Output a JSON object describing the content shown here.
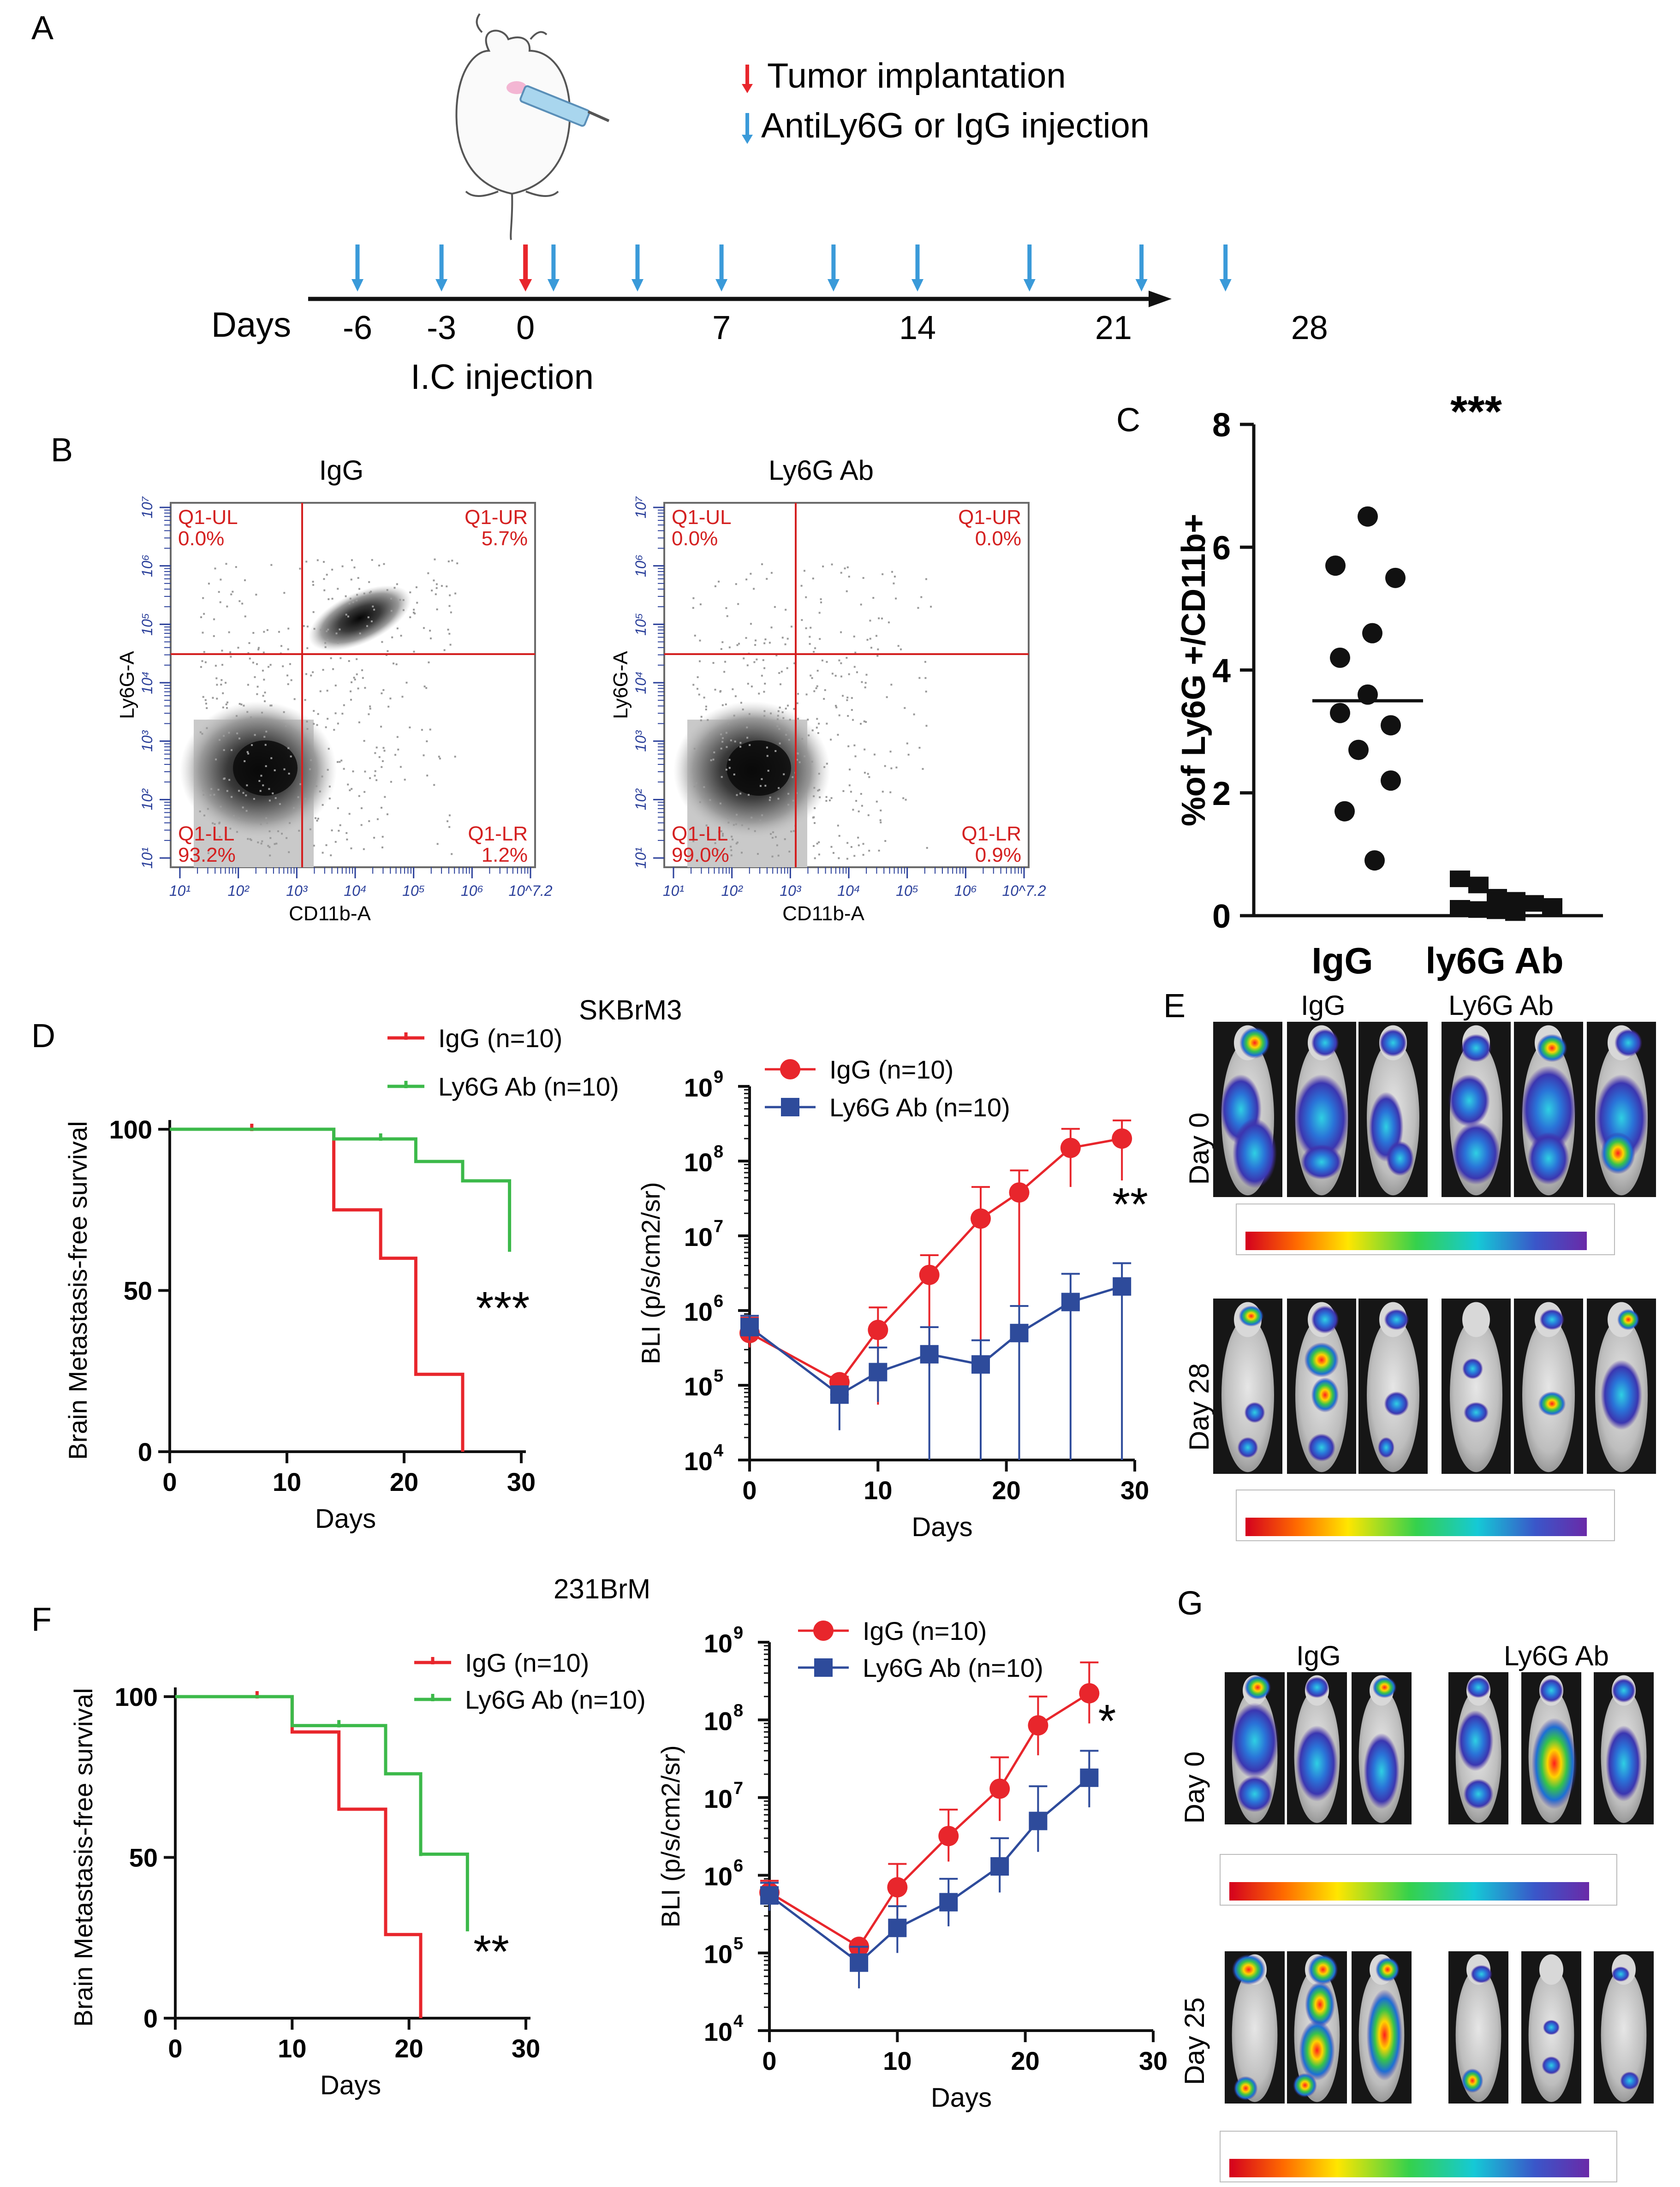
{
  "panels": {
    "A": "A",
    "B": "B",
    "C": "C",
    "D": "D",
    "E": "E",
    "F": "F",
    "G": "G"
  },
  "panel_a": {
    "legend_tumor": "Tumor implantation",
    "legend_injection": "AntiLy6G or IgG injection",
    "axis_label": "Days",
    "ticks": [
      "-6",
      "-3",
      "0",
      "7",
      "14",
      "21",
      "28"
    ],
    "tick_days": [
      -6,
      -3,
      0,
      7,
      14,
      21,
      28
    ],
    "injection_days": [
      -6,
      -3,
      1,
      4,
      7,
      11,
      14,
      18,
      22,
      25
    ],
    "tumor_day": 0,
    "sublabel": "I.C injection",
    "colors": {
      "tumor": "#e8262c",
      "injection": "#3a9ad9"
    }
  },
  "panel_b": {
    "plots": [
      {
        "title": "IgG",
        "ul_name": "Q1-UL",
        "ul_val": "0.0%",
        "ur_name": "Q1-UR",
        "ur_val": "5.7%",
        "ll_name": "Q1-LL",
        "ll_val": "93.2%",
        "lr_name": "Q1-LR",
        "lr_val": "1.2%",
        "xlabel": "CD11b-A",
        "ylabel": "Ly6G-A"
      },
      {
        "title": "Ly6G Ab",
        "ul_name": "Q1-UL",
        "ul_val": "0.0%",
        "ur_name": "Q1-UR",
        "ur_val": "0.0%",
        "ll_name": "Q1-LL",
        "ll_val": "99.0%",
        "lr_name": "Q1-LR",
        "lr_val": "0.9%",
        "xlabel": "CD11b-A",
        "ylabel": "Ly6G-A"
      }
    ],
    "x_ticks": [
      "10¹",
      "10²",
      "10³",
      "10⁴",
      "10⁵",
      "10⁶",
      "10^7.2"
    ],
    "y_ticks": [
      "10¹",
      "10²",
      "10³",
      "10⁴",
      "10⁵",
      "10⁶",
      "10⁷"
    ]
  },
  "chart_data": [
    {
      "id": "C",
      "type": "scatter",
      "ylabel": "%of Ly6G +/CD11b+",
      "ylim": [
        0,
        8
      ],
      "yticks": [
        "0",
        "2",
        "4",
        "6",
        "8"
      ],
      "categories": [
        "IgG",
        "ly6G Ab"
      ],
      "series": [
        {
          "name": "IgG",
          "values": [
            6.5,
            5.7,
            5.5,
            4.6,
            4.2,
            3.6,
            3.3,
            3.1,
            2.7,
            2.2,
            1.7,
            0.9
          ],
          "mean": 3.5,
          "color": "#111111"
        },
        {
          "name": "ly6G Ab",
          "values": [
            0.6,
            0.5,
            0.3,
            0.25,
            0.2,
            0.15,
            0.12,
            0.1,
            0.08,
            0.05
          ],
          "mean": 0.1,
          "color": "#111111"
        }
      ],
      "annotation": "***"
    },
    {
      "id": "D-left",
      "type": "line",
      "title": "SKBrM3",
      "xlabel": "Days",
      "ylabel": "Brain Metastasis-free survival",
      "xlim": [
        0,
        30
      ],
      "ylim": [
        0,
        100
      ],
      "xticks": [
        "0",
        "10",
        "20",
        "30"
      ],
      "yticks": [
        "0",
        "50",
        "100"
      ],
      "series": [
        {
          "name": "IgG (n=10)",
          "color": "#e8262c",
          "steps": [
            [
              0,
              100
            ],
            [
              14,
              100
            ],
            [
              14,
              75
            ],
            [
              18,
              75
            ],
            [
              18,
              60
            ],
            [
              21,
              60
            ],
            [
              21,
              24
            ],
            [
              25,
              24
            ],
            [
              25,
              0
            ]
          ],
          "censor": [
            [
              7,
              100
            ]
          ]
        },
        {
          "name": "Ly6G Ab (n=10)",
          "color": "#3cb94a",
          "steps": [
            [
              0,
              100
            ],
            [
              14,
              100
            ],
            [
              14,
              97
            ],
            [
              21,
              97
            ],
            [
              21,
              90
            ],
            [
              25,
              90
            ],
            [
              25,
              84
            ],
            [
              29,
              84
            ],
            [
              29,
              62
            ]
          ],
          "censor": [
            [
              18,
              97
            ]
          ]
        }
      ],
      "annotation": "***"
    },
    {
      "id": "D-right",
      "type": "line",
      "xlabel": "Days",
      "ylabel": "BLI (p/s/cm2/sr)",
      "xlim": [
        0,
        30
      ],
      "ylim_log10": [
        4,
        9
      ],
      "xticks": [
        "0",
        "10",
        "20",
        "30"
      ],
      "yticks": [
        "10",
        "10",
        "10",
        "10",
        "10",
        "10"
      ],
      "ytick_exp": [
        "4",
        "5",
        "6",
        "7",
        "8",
        "9"
      ],
      "x": [
        0,
        7,
        10,
        14,
        18,
        21,
        25,
        29
      ],
      "series": [
        {
          "name": "IgG (n=10)",
          "color": "#e8262c",
          "marker": "circle",
          "values": [
            500000,
            110000,
            550000,
            3000000,
            17000000,
            38000000,
            150000000,
            200000000
          ],
          "err_hi": [
            800000,
            130000,
            1100000,
            5500000,
            45000000,
            75000000,
            270000000,
            350000000
          ],
          "err_lo": [
            320000,
            90000,
            55000,
            180000,
            0,
            0,
            45000000,
            55000000
          ]
        },
        {
          "name": "Ly6G Ab (n=10)",
          "color": "#2e4b9b",
          "marker": "square",
          "values": [
            600000,
            75000,
            150000,
            260000,
            190000,
            500000,
            1300000,
            2100000
          ],
          "err_hi": [
            850000,
            75000,
            320000,
            600000,
            400000,
            1150000,
            3100000,
            4300000
          ],
          "err_lo": [
            400000,
            25000,
            60000,
            0,
            0,
            0,
            0,
            0
          ]
        }
      ],
      "annotation": "**"
    },
    {
      "id": "F-left",
      "type": "line",
      "title": "231BrM",
      "xlabel": "Days",
      "ylabel": "Brain Metastasis-free survival",
      "xlim": [
        0,
        30
      ],
      "ylim": [
        0,
        100
      ],
      "xticks": [
        "0",
        "10",
        "20",
        "30"
      ],
      "yticks": [
        "0",
        "50",
        "100"
      ],
      "series": [
        {
          "name": "IgG (n=10)",
          "color": "#e8262c",
          "steps": [
            [
              0,
              100
            ],
            [
              10,
              100
            ],
            [
              10,
              89
            ],
            [
              14,
              89
            ],
            [
              14,
              65
            ],
            [
              18,
              65
            ],
            [
              18,
              26
            ],
            [
              21,
              26
            ],
            [
              21,
              0
            ]
          ],
          "censor": [
            [
              7,
              100
            ]
          ]
        },
        {
          "name": "Ly6G Ab (n=10)",
          "color": "#3cb94a",
          "steps": [
            [
              0,
              100
            ],
            [
              10,
              100
            ],
            [
              10,
              91
            ],
            [
              14,
              91
            ],
            [
              18,
              91
            ],
            [
              18,
              76
            ],
            [
              21,
              76
            ],
            [
              21,
              51
            ],
            [
              25,
              51
            ],
            [
              25,
              27
            ]
          ],
          "censor": [
            [
              14,
              91
            ],
            [
              21,
              51
            ]
          ]
        }
      ],
      "annotation": "**"
    },
    {
      "id": "F-right",
      "type": "line",
      "xlabel": "Days",
      "ylabel": "BLI (p/s/cm2/sr)",
      "xlim": [
        0,
        30
      ],
      "ylim_log10": [
        4,
        9
      ],
      "xticks": [
        "0",
        "10",
        "20",
        "30"
      ],
      "yticks": [
        "10",
        "10",
        "10",
        "10",
        "10",
        "10"
      ],
      "ytick_exp": [
        "4",
        "5",
        "6",
        "7",
        "8",
        "9"
      ],
      "x": [
        0,
        7,
        10,
        14,
        18,
        21,
        25
      ],
      "series": [
        {
          "name": "IgG (n=10)",
          "color": "#e8262c",
          "marker": "circle",
          "values": [
            600000,
            120000,
            700000,
            3200000,
            13000000,
            85000000,
            220000000
          ],
          "err_hi": [
            850000,
            130000,
            1400000,
            7000000,
            33000000,
            200000000,
            550000000
          ],
          "err_lo": [
            400000,
            100000,
            300000,
            1500000,
            5000000,
            35000000,
            90000000
          ]
        },
        {
          "name": "Ly6G Ab (n=10)",
          "color": "#2e4b9b",
          "marker": "square",
          "values": [
            550000,
            75000,
            210000,
            450000,
            1300000,
            5000000,
            18000000
          ],
          "err_hi": [
            800000,
            120000,
            400000,
            900000,
            3000000,
            14000000,
            40000000
          ],
          "err_lo": [
            350000,
            35000,
            100000,
            220000,
            600000,
            2000000,
            7500000
          ]
        }
      ],
      "annotation": "*"
    }
  ],
  "panel_e": {
    "col_igg": "IgG",
    "col_ab": "Ly6G Ab",
    "row1": "Day 0",
    "row2": "Day 28"
  },
  "panel_g": {
    "col_igg": "IgG",
    "col_ab": "Ly6G Ab",
    "row1": "Day 0",
    "row2": "Day 25"
  }
}
